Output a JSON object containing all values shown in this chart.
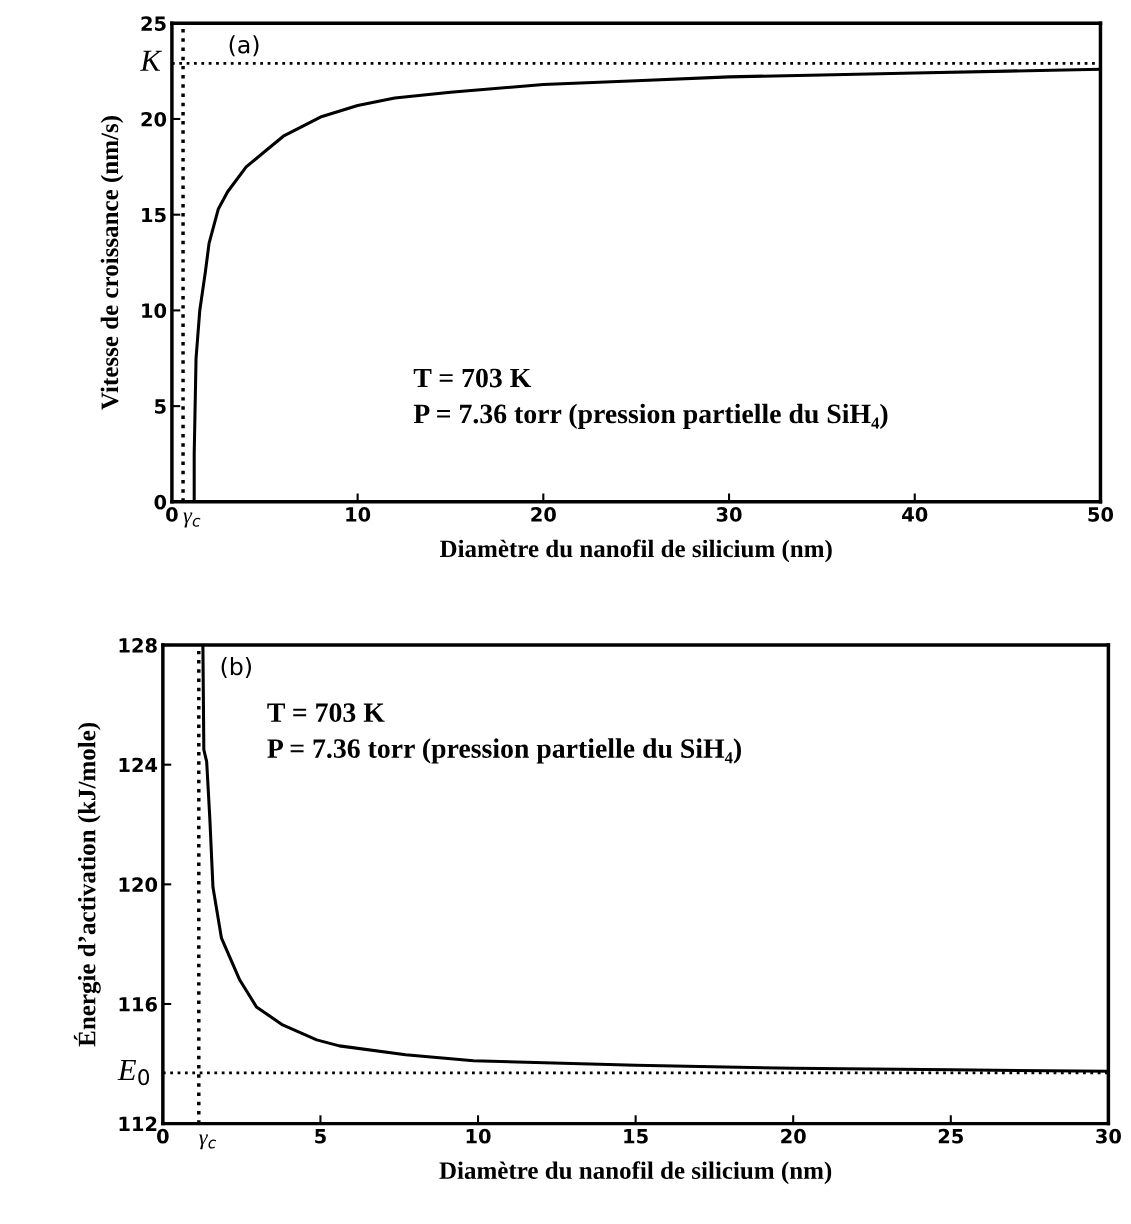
{
  "chart_data": [
    {
      "type": "line",
      "xlabel": "Diamètre du nanofil de silicium (nm)",
      "ylabel": "Vitesse de croissance (nm/s)",
      "annotations": [
        "(a)",
        "T = 703 K",
        "P = 7.36 torr (pression partielle du SiH₄)"
      ],
      "x": [
        1.2,
        1.2,
        1.3,
        1.5,
        1.8,
        2,
        2.5,
        3,
        4,
        5,
        6,
        7,
        8,
        10,
        12,
        15,
        20,
        25,
        30,
        35,
        40,
        45,
        50
      ],
      "values": [
        0,
        2.5,
        7.5,
        10,
        12,
        13.5,
        15.3,
        16.2,
        17.5,
        18.3,
        19.1,
        19.6,
        20.1,
        20.7,
        21.1,
        21.4,
        21.8,
        22.0,
        22.2,
        22.3,
        22.4,
        22.5,
        22.6
      ],
      "color": "#000000",
      "xlim": [
        0,
        50
      ],
      "xticks": [
        0,
        10,
        20,
        30,
        40,
        50
      ],
      "ylim": [
        0,
        25
      ],
      "yticks": [
        0,
        5,
        10,
        15,
        20,
        25
      ],
      "ref_lines": [
        {
          "axis": "y",
          "value": 22.9,
          "label": "K",
          "line_style": "dotted",
          "color": "#000000"
        },
        {
          "axis": "x",
          "value": 0.6,
          "label": "γ$_{c}$",
          "line_style": "dotted",
          "color": "#000000"
        }
      ],
      "grid": false,
      "legend": false,
      "marker": "none",
      "line_style": "solid"
    },
    {
      "type": "line",
      "xlabel": "Diamètre du nanofil de silicium (nm)",
      "ylabel": "Énergie d’activation (kJ/mole)",
      "annotations": [
        "(b)",
        "T = 703 K",
        "P = 7.36 torr (pression partielle du SiH₄)"
      ],
      "x": [
        1.27,
        1.3,
        1.39,
        1.49,
        1.59,
        1.86,
        2.44,
        2.97,
        3.8,
        4.88,
        5.6,
        7.7,
        9.85,
        15,
        20,
        25,
        30
      ],
      "values": [
        128,
        124.5,
        124.1,
        122.2,
        119.9,
        118.2,
        116.8,
        115.9,
        115.3,
        114.8,
        114.6,
        114.3,
        114.1,
        113.95,
        113.85,
        113.8,
        113.75
      ],
      "color": "#000000",
      "xlim": [
        0,
        30
      ],
      "xticks": [
        0,
        5,
        10,
        15,
        20,
        25,
        30
      ],
      "ylim": [
        112,
        128
      ],
      "yticks": [
        112,
        116,
        120,
        124,
        128
      ],
      "ref_lines": [
        {
          "axis": "y",
          "value": 113.7,
          "label": "E$_{0}$",
          "line_style": "dotted",
          "color": "#000000"
        },
        {
          "axis": "x",
          "value": 1.14,
          "label": "γ$_{c}$",
          "line_style": "dotted",
          "color": "#000000"
        }
      ],
      "grid": false,
      "legend": false,
      "marker": "none",
      "line_style": "solid"
    }
  ]
}
